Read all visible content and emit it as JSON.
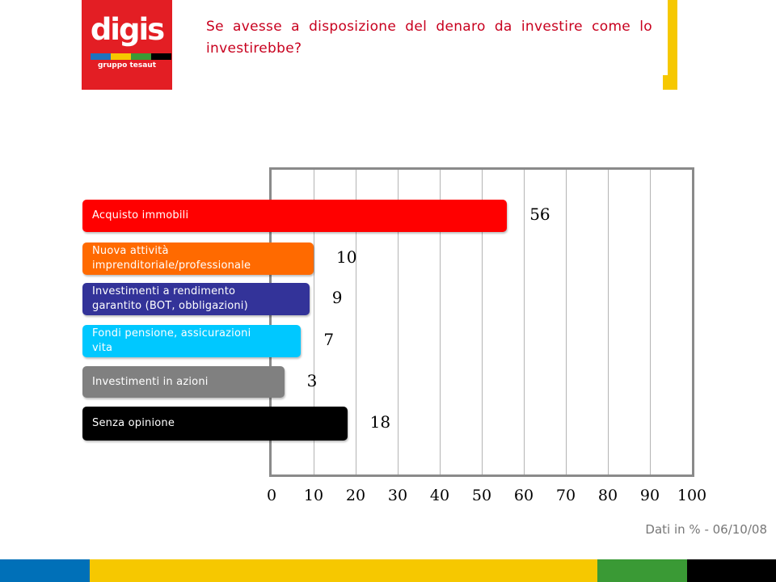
{
  "logo": {
    "word": "digis",
    "subtitle": "gruppo tesaut",
    "stripe_colors": [
      "#1e73be",
      "#f6c800",
      "#3a9a35",
      "#000000"
    ]
  },
  "title": "Se avesse a disposizione del denaro da investire come lo investirebbe?",
  "colors": {
    "title": "#c8001e",
    "logo_bg": "#e31e24",
    "bracket": "#f6c800"
  },
  "chart_data": {
    "type": "bar",
    "orientation": "horizontal",
    "categories": [
      "Acquisto immobili",
      "Nuova attività imprenditoriale/professionale",
      "Investimenti a rendimento garantito (BOT, obbligazioni)",
      "Fondi pensione, assicurazioni vita",
      "Investimenti in azioni",
      "Senza opinione"
    ],
    "label_lines": [
      [
        "Acquisto immobili"
      ],
      [
        "Nuova attività",
        "imprenditoriale/professionale"
      ],
      [
        "Investimenti a rendimento",
        "garantito (BOT, obbligazioni)"
      ],
      [
        "Fondi pensione, assicurazioni",
        "vita"
      ],
      [
        "Investimenti in azioni"
      ],
      [
        "Senza opinione"
      ]
    ],
    "values": [
      56,
      10,
      9,
      7,
      3,
      18
    ],
    "value_labels": [
      "56",
      "10",
      "9",
      "7",
      "3",
      "18"
    ],
    "bar_colors": [
      "#ff0000",
      "#ff6a00",
      "#333399",
      "#00c8ff",
      "#808080",
      "#000000"
    ],
    "xlim": [
      0,
      100
    ],
    "xticks": [
      "0",
      "10",
      "20",
      "30",
      "40",
      "50",
      "60",
      "70",
      "80",
      "90",
      "100"
    ],
    "grid": true
  },
  "footnote": "Dati in % - 06/10/08",
  "band_colors": [
    "#0070b8",
    "#f6c800",
    "#3a9a35",
    "#000000"
  ]
}
